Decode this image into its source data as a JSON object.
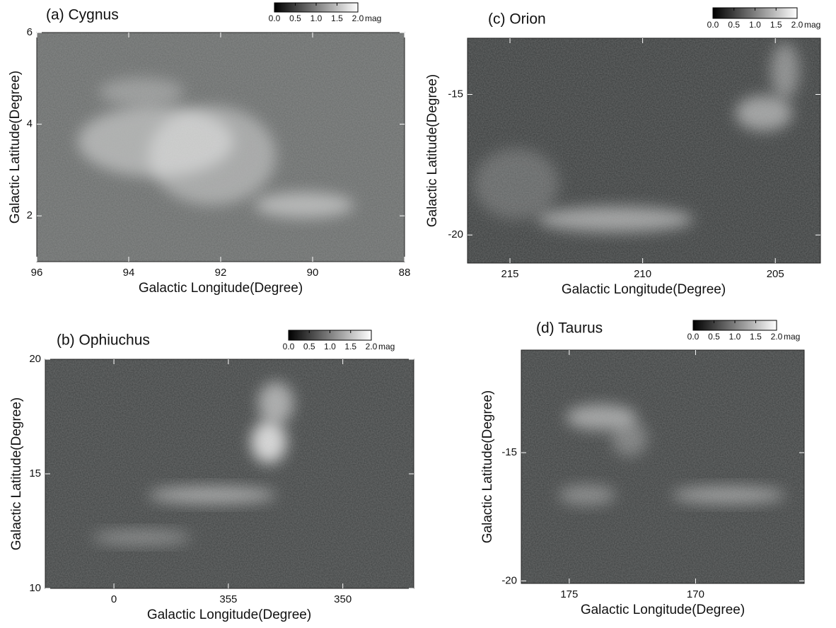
{
  "chart_data": [
    {
      "type": "heatmap",
      "title": "(a) Cygnus",
      "x_label": "Galactic Longitude(Degree)",
      "y_label": "Galactic Latitude(Degree)",
      "xlim": [
        96,
        88
      ],
      "ylim": [
        1,
        6
      ],
      "xticks": [
        96,
        94,
        92,
        90,
        88
      ],
      "yticks": [
        2,
        4,
        6
      ],
      "colorbar": {
        "lim": [
          0,
          2
        ],
        "ticks": [
          {
            "value": 0,
            "label": "0.0"
          },
          {
            "value": 0.5,
            "label": "0.5"
          },
          {
            "value": 1,
            "label": "1.0"
          },
          {
            "value": 1.5,
            "label": "1.5"
          },
          {
            "value": 2,
            "label": "2.0"
          }
        ],
        "label": "mag"
      }
    },
    {
      "type": "heatmap",
      "title": "(b) Ophiuchus",
      "x_label": "Galactic Longitude(Degree)",
      "y_label": "Galactic Latitude(Degree)",
      "xlim": [
        363,
        346.9
      ],
      "ylim": [
        10,
        20
      ],
      "xticks": [
        {
          "value": 360,
          "label": "0"
        },
        355,
        350
      ],
      "yticks": [
        10,
        15,
        20
      ],
      "colorbar": {
        "lim": [
          0,
          2
        ],
        "ticks": [
          {
            "value": 0,
            "label": "0.0"
          },
          {
            "value": 0.5,
            "label": "0.5"
          },
          {
            "value": 1,
            "label": "1.0"
          },
          {
            "value": 1.5,
            "label": "1.5"
          },
          {
            "value": 2,
            "label": "2.0"
          }
        ],
        "label": "mag"
      }
    },
    {
      "type": "heatmap",
      "title": "(c) Orion",
      "x_label": "Galactic Longitude(Degree)",
      "y_label": "Galactic Latitude(Degree)",
      "xlim": [
        216.6,
        203.3
      ],
      "ylim": [
        -21,
        -13
      ],
      "xticks": [
        215,
        210,
        205
      ],
      "yticks": [
        -20,
        -15
      ],
      "colorbar": {
        "lim": [
          0,
          2
        ],
        "ticks": [
          {
            "value": 0,
            "label": "0.0"
          },
          {
            "value": 0.5,
            "label": "0.5"
          },
          {
            "value": 1,
            "label": "1.0"
          },
          {
            "value": 1.5,
            "label": "1.5"
          },
          {
            "value": 2,
            "label": "2.0"
          }
        ],
        "label": "mag"
      }
    },
    {
      "type": "heatmap",
      "title": "(d) Taurus",
      "x_label": "Galactic Longitude(Degree)",
      "y_label": "Galactic Latitude(Degree)",
      "xlim": [
        176.9,
        165.7
      ],
      "ylim": [
        -20.1,
        -11
      ],
      "xticks": [
        175,
        170
      ],
      "yticks": [
        -20,
        -15
      ],
      "colorbar": {
        "lim": [
          0,
          2
        ],
        "ticks": [
          {
            "value": 0,
            "label": "0.0"
          },
          {
            "value": 0.5,
            "label": "0.5"
          },
          {
            "value": 1,
            "label": "1.0"
          },
          {
            "value": 1.5,
            "label": "1.5"
          },
          {
            "value": 2,
            "label": "2.0"
          }
        ],
        "label": "mag"
      }
    }
  ]
}
